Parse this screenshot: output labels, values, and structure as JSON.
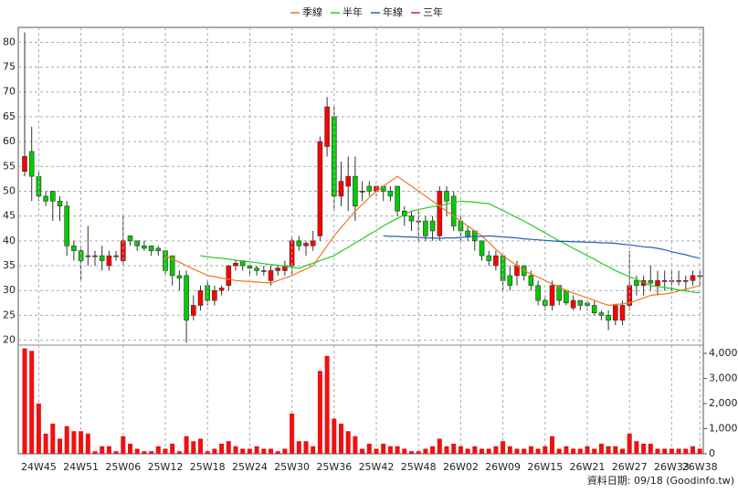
{
  "chart_data": [
    {
      "type": "candlestick",
      "up_color": "#ff0000",
      "down_color": "#00cc00",
      "ylim": [
        19,
        83
      ],
      "yticks": [
        20,
        25,
        30,
        35,
        40,
        45,
        50,
        55,
        60,
        65,
        70,
        75,
        80
      ],
      "grid": true,
      "open": [
        54,
        58,
        53,
        49,
        50,
        48,
        47,
        39,
        38,
        37,
        37,
        37,
        35,
        37,
        36,
        41,
        40,
        39,
        39,
        38.5,
        38,
        37,
        33,
        33,
        25,
        27,
        31,
        28,
        30,
        31,
        35,
        36,
        35,
        34.5,
        34,
        32,
        34,
        34,
        35,
        40,
        39,
        39,
        41,
        59,
        65,
        49,
        51,
        53,
        50,
        51,
        50,
        51,
        50,
        51,
        46,
        45,
        44,
        44,
        44,
        41,
        50,
        49,
        44,
        42,
        42,
        40,
        37,
        35,
        37,
        33,
        33,
        35,
        33,
        31,
        28,
        27,
        31,
        30,
        26.5,
        28,
        27.5,
        27,
        25.5,
        25,
        24,
        24,
        27,
        32,
        31,
        32,
        31,
        32,
        32,
        32,
        32,
        32,
        33
      ],
      "high": [
        82,
        63,
        54,
        50,
        50,
        49,
        48,
        40,
        39,
        43,
        38,
        39,
        38,
        38,
        45,
        41,
        40,
        40,
        39,
        39,
        38,
        37,
        34,
        34,
        29,
        31,
        32,
        31,
        31,
        35,
        36,
        36,
        35,
        35,
        35,
        35,
        35,
        36,
        41,
        41,
        40,
        42,
        61,
        69,
        67,
        56,
        57,
        57,
        52,
        52,
        51,
        51,
        51,
        51,
        47,
        46,
        46,
        45,
        45,
        51,
        51,
        50,
        45,
        43,
        42,
        40,
        38,
        38,
        37,
        35,
        36,
        35,
        34,
        32,
        29,
        32,
        31,
        30,
        29,
        28,
        28,
        28,
        26,
        26,
        27,
        28,
        38,
        33,
        33,
        35,
        34,
        34,
        34,
        34,
        33,
        34,
        34
      ],
      "low": [
        53,
        48,
        48,
        47,
        44,
        44,
        37,
        36,
        32,
        35,
        35,
        34,
        34,
        36,
        35,
        39,
        38,
        38,
        37,
        37,
        33,
        31,
        30,
        19.5,
        24,
        26,
        27,
        27,
        29,
        30,
        34,
        34,
        33,
        33,
        33,
        31,
        33,
        33,
        33,
        38,
        37,
        38,
        40,
        57,
        46,
        47,
        46,
        44,
        48,
        49,
        49,
        48,
        48,
        45,
        43,
        42,
        40,
        40,
        40,
        40,
        45,
        42,
        40,
        40,
        38,
        36,
        35,
        34,
        30,
        30,
        31,
        32,
        30,
        27,
        26,
        26,
        27,
        27,
        26,
        26,
        26,
        25,
        24,
        22,
        23,
        23,
        26,
        29,
        29,
        30,
        29,
        30,
        30,
        31,
        30,
        31,
        31
      ],
      "close": [
        57,
        53,
        49,
        48,
        48,
        47,
        39,
        38,
        36,
        37,
        37,
        36,
        37,
        37,
        40,
        40,
        39,
        38.5,
        38,
        38,
        34,
        33,
        32.5,
        24,
        27,
        30,
        28,
        30,
        30.5,
        35,
        35.5,
        35,
        34.5,
        34,
        34,
        34,
        34.5,
        35,
        40,
        39,
        39.5,
        40,
        60,
        67,
        49,
        52,
        53,
        47,
        50,
        50,
        51,
        50,
        49,
        46,
        45,
        44,
        44,
        41,
        42,
        50,
        48,
        43,
        42,
        41,
        40,
        37,
        36,
        37,
        32,
        31,
        35,
        33,
        31,
        28,
        27,
        31,
        28,
        27.5,
        28,
        27,
        27,
        25.5,
        25,
        24,
        27,
        27,
        31,
        31,
        32,
        31.5,
        32,
        32,
        32,
        32,
        32,
        33,
        33
      ],
      "series": [
        {
          "name": "季線",
          "color": "#f07820",
          "values": [
            null,
            null,
            null,
            null,
            null,
            null,
            null,
            null,
            null,
            null,
            null,
            null,
            null,
            null,
            null,
            null,
            null,
            null,
            null,
            null,
            37,
            36.3,
            35.7,
            35,
            34.3,
            33.7,
            33,
            32.8,
            32.5,
            32.3,
            32,
            31.9,
            31.8,
            31.7,
            31.6,
            31.5,
            32,
            32.5,
            33,
            33.7,
            34.3,
            35,
            37,
            39,
            41,
            42.7,
            44.3,
            46,
            47.3,
            48.7,
            50,
            51,
            52,
            53,
            52,
            51,
            50,
            49,
            48,
            47,
            46,
            45,
            44,
            43,
            42,
            41,
            39.7,
            38.3,
            37,
            36,
            35,
            34,
            33.3,
            32.7,
            32,
            31.3,
            30.7,
            30,
            29.5,
            29,
            28.5,
            28,
            27.5,
            27,
            27.2,
            27.3,
            27.5,
            28,
            28.5,
            29,
            29.2,
            29.3,
            29.5,
            29.9,
            30.3,
            30.6,
            31
          ]
        },
        {
          "name": "半年",
          "color": "#22cc22",
          "values": [
            null,
            null,
            null,
            null,
            null,
            null,
            null,
            null,
            null,
            null,
            null,
            null,
            null,
            null,
            null,
            null,
            null,
            null,
            null,
            null,
            null,
            null,
            null,
            null,
            null,
            37,
            36.8,
            36.6,
            36.5,
            36.3,
            36.1,
            35.9,
            35.8,
            35.6,
            35.4,
            35.2,
            35.1,
            34.9,
            34.7,
            34.5,
            35,
            35.5,
            36,
            36.5,
            37,
            37.9,
            38.7,
            39.6,
            40.4,
            41.3,
            42.1,
            43,
            43.8,
            44.5,
            45.3,
            46,
            46.3,
            46.6,
            46.9,
            47.1,
            47.4,
            47.7,
            48,
            47.9,
            47.8,
            47.6,
            47.5,
            46.8,
            46.1,
            45.4,
            44.7,
            44,
            43.2,
            42.4,
            41.6,
            40.8,
            40,
            39.3,
            38.5,
            37.8,
            37,
            36.3,
            35.5,
            34.8,
            34,
            33.4,
            32.8,
            32.2,
            31.6,
            31,
            30.8,
            30.6,
            30.4,
            30.1,
            29.9,
            29.7,
            29.5
          ]
        },
        {
          "name": "年線",
          "color": "#1f5fbf",
          "values": [
            null,
            null,
            null,
            null,
            null,
            null,
            null,
            null,
            null,
            null,
            null,
            null,
            null,
            null,
            null,
            null,
            null,
            null,
            null,
            null,
            null,
            null,
            null,
            null,
            null,
            null,
            null,
            null,
            null,
            null,
            null,
            null,
            null,
            null,
            null,
            null,
            null,
            null,
            null,
            null,
            null,
            null,
            null,
            null,
            null,
            null,
            null,
            null,
            null,
            null,
            null,
            41,
            40.9,
            40.9,
            40.8,
            40.8,
            40.7,
            40.6,
            40.6,
            40.5,
            40.6,
            40.6,
            40.7,
            40.8,
            40.9,
            40.9,
            41,
            40.9,
            40.8,
            40.7,
            40.6,
            40.4,
            40.3,
            40.2,
            40.1,
            40,
            39.9,
            39.9,
            39.8,
            39.8,
            39.7,
            39.7,
            39.6,
            39.6,
            39.5,
            39.3,
            39.2,
            39,
            38.8,
            38.7,
            38.5,
            38.2,
            37.8,
            37.5,
            37.2,
            36.8,
            36.5
          ]
        },
        {
          "name": "三年",
          "color": "#e02020",
          "values": [
            null,
            null,
            null,
            null,
            null,
            null,
            null,
            null,
            null,
            null,
            null,
            null,
            null,
            null,
            null,
            null,
            null,
            null,
            null,
            null,
            null,
            null,
            null,
            null,
            null,
            null,
            null,
            null,
            null,
            null,
            null,
            null,
            null,
            null,
            null,
            null,
            null,
            null,
            null,
            null,
            null,
            null,
            null,
            null,
            null,
            null,
            null,
            null,
            null,
            null,
            null,
            null,
            null,
            null,
            null,
            null,
            null,
            null,
            null,
            null,
            null,
            null,
            null,
            null,
            null,
            null,
            null,
            null,
            null,
            null,
            null,
            null,
            null,
            null,
            null,
            null,
            null,
            null,
            null,
            null,
            null,
            null,
            null,
            null,
            null,
            null,
            null,
            null,
            null,
            null,
            null,
            null,
            null,
            null,
            null,
            null,
            null
          ]
        }
      ]
    },
    {
      "type": "bar",
      "color": "#ee1111",
      "ylim": [
        0,
        4330
      ],
      "yticks": [
        0,
        {
          "value": 1000,
          "label": "1,000"
        },
        {
          "value": 2000,
          "label": "2,000"
        },
        {
          "value": 3000,
          "label": "3,000"
        },
        {
          "value": 4000,
          "label": "4,000"
        }
      ],
      "categories": [
        null,
        null,
        "24W45",
        null,
        null,
        null,
        null,
        null,
        "24W51",
        null,
        null,
        null,
        null,
        null,
        "25W06",
        null,
        null,
        null,
        null,
        null,
        "25W12",
        null,
        null,
        null,
        null,
        null,
        "25W18",
        null,
        null,
        null,
        null,
        null,
        "25W24",
        null,
        null,
        null,
        null,
        null,
        "25W30",
        null,
        null,
        null,
        null,
        null,
        "25W36",
        null,
        null,
        null,
        null,
        null,
        "25W42",
        null,
        null,
        null,
        null,
        null,
        "25W48",
        null,
        null,
        null,
        null,
        null,
        "26W02",
        null,
        null,
        null,
        null,
        null,
        "26W09",
        null,
        null,
        null,
        null,
        null,
        "26W15",
        null,
        null,
        null,
        null,
        null,
        "26W21",
        null,
        null,
        null,
        null,
        null,
        "26W27",
        null,
        null,
        null,
        null,
        null,
        "26W33",
        null,
        null,
        null,
        "26W38"
      ],
      "values": [
        4200,
        4100,
        2000,
        800,
        1200,
        600,
        1100,
        900,
        900,
        800,
        100,
        300,
        300,
        100,
        700,
        400,
        200,
        100,
        100,
        300,
        200,
        400,
        100,
        700,
        500,
        600,
        100,
        200,
        400,
        500,
        300,
        200,
        200,
        300,
        200,
        200,
        100,
        200,
        1600,
        500,
        500,
        300,
        3300,
        3900,
        1400,
        1200,
        900,
        700,
        200,
        400,
        200,
        400,
        300,
        300,
        200,
        100,
        100,
        200,
        300,
        600,
        300,
        400,
        300,
        200,
        300,
        200,
        200,
        300,
        500,
        300,
        200,
        200,
        300,
        200,
        300,
        700,
        200,
        300,
        200,
        200,
        300,
        200,
        400,
        300,
        300,
        200,
        800,
        500,
        400,
        400,
        200,
        200,
        200,
        200,
        200,
        300,
        200
      ]
    }
  ],
  "footer": "資料日期: 09/18 (Goodinfo.tw)"
}
